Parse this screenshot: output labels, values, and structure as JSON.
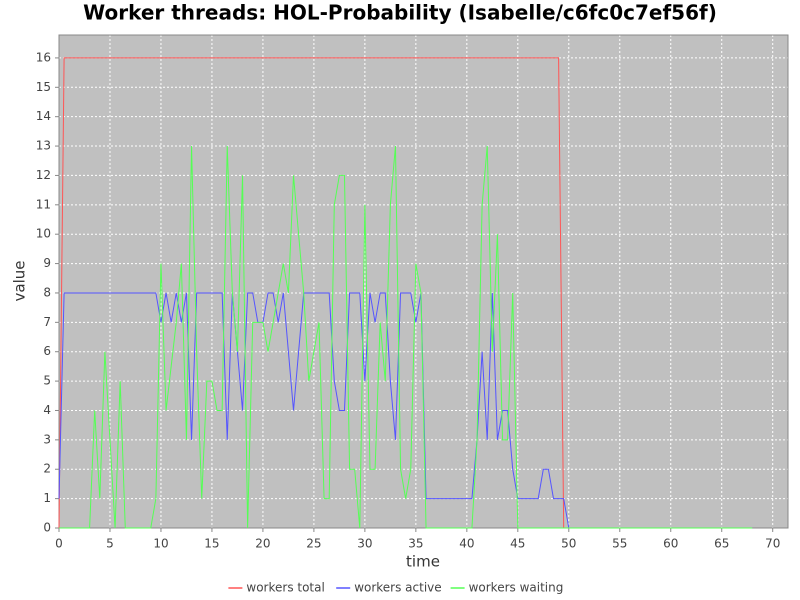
{
  "chart_data": {
    "type": "line",
    "title": "Worker threads: HOL-Probability (Isabelle/c6fc0c7ef56f)",
    "xlabel": "time",
    "ylabel": "value",
    "xlim": [
      0,
      71.5
    ],
    "ylim": [
      0,
      16.78
    ],
    "xticks": [
      0,
      5,
      10,
      15,
      20,
      25,
      30,
      35,
      40,
      45,
      50,
      55,
      60,
      65,
      70
    ],
    "yticks": [
      0,
      1,
      2,
      3,
      4,
      5,
      6,
      7,
      8,
      9,
      10,
      11,
      12,
      13,
      14,
      15,
      16
    ],
    "grid": true,
    "legend": "bottom",
    "series": [
      {
        "name": "workers total",
        "color": "#ff5555",
        "x": [
          0,
          0.5,
          49,
          49.5,
          68
        ],
        "values": [
          0,
          16,
          16,
          0,
          0
        ]
      },
      {
        "name": "workers active",
        "color": "#5555ff",
        "x": [
          0,
          0.5,
          9.5,
          10,
          10.5,
          11,
          11.5,
          12,
          12.5,
          13,
          13.5,
          16,
          16.5,
          17,
          18,
          18.5,
          19,
          19.5,
          20,
          20.5,
          21,
          21.5,
          22,
          23,
          24,
          26.5,
          27,
          27.5,
          28,
          28.5,
          29.5,
          30,
          30.5,
          31,
          31.5,
          32,
          32.5,
          33,
          33.5,
          34.5,
          35,
          35.5,
          36,
          40.5,
          41,
          41.5,
          42,
          42.5,
          43,
          43.5,
          44,
          44.5,
          45,
          47,
          47.5,
          48,
          48.5,
          49.5,
          50,
          68
        ],
        "values": [
          1,
          8,
          8,
          7,
          8,
          7,
          8,
          7,
          8,
          3,
          8,
          8,
          3,
          8,
          4,
          8,
          8,
          7,
          7,
          8,
          8,
          7,
          8,
          4,
          8,
          8,
          5,
          4,
          4,
          8,
          8,
          5,
          8,
          7,
          8,
          8,
          5,
          3,
          8,
          8,
          7,
          8,
          1,
          1,
          3,
          6,
          3,
          8,
          3,
          4,
          4,
          2,
          1,
          1,
          2,
          2,
          1,
          1,
          0,
          0
        ]
      },
      {
        "name": "workers waiting",
        "color": "#55ff55",
        "x": [
          0,
          3,
          3.5,
          4,
          4.5,
          5.5,
          6,
          6.5,
          9,
          9.5,
          10,
          10.5,
          11.5,
          12,
          12.5,
          13,
          13.5,
          14,
          14.5,
          15,
          15.5,
          16,
          16.5,
          17,
          17.5,
          18,
          18.5,
          19,
          20,
          20.5,
          21,
          22,
          22.5,
          23,
          24,
          24.5,
          25.5,
          26,
          26.5,
          27,
          27.5,
          28,
          28.5,
          29,
          29.5,
          30,
          30.5,
          31,
          31.5,
          32,
          32.5,
          33,
          33.5,
          34,
          34.5,
          35,
          35.5,
          36,
          40.5,
          41,
          41.5,
          42,
          42.5,
          43,
          43.5,
          44,
          44.5,
          45,
          49,
          68
        ],
        "values": [
          0,
          0,
          4,
          1,
          6,
          0,
          5,
          0,
          0,
          1,
          9,
          4,
          7,
          9,
          3,
          13,
          6,
          1,
          5,
          5,
          4,
          4,
          13,
          8,
          6,
          12,
          0,
          7,
          7,
          6,
          7,
          9,
          8,
          12,
          8,
          5,
          7,
          1,
          1,
          11,
          12,
          12,
          2,
          2,
          0,
          11,
          2,
          2,
          7,
          5,
          11,
          13,
          2,
          1,
          2,
          9,
          8,
          0,
          0,
          3,
          11,
          13,
          6,
          10,
          3,
          3,
          8,
          0,
          0,
          0
        ]
      }
    ]
  }
}
